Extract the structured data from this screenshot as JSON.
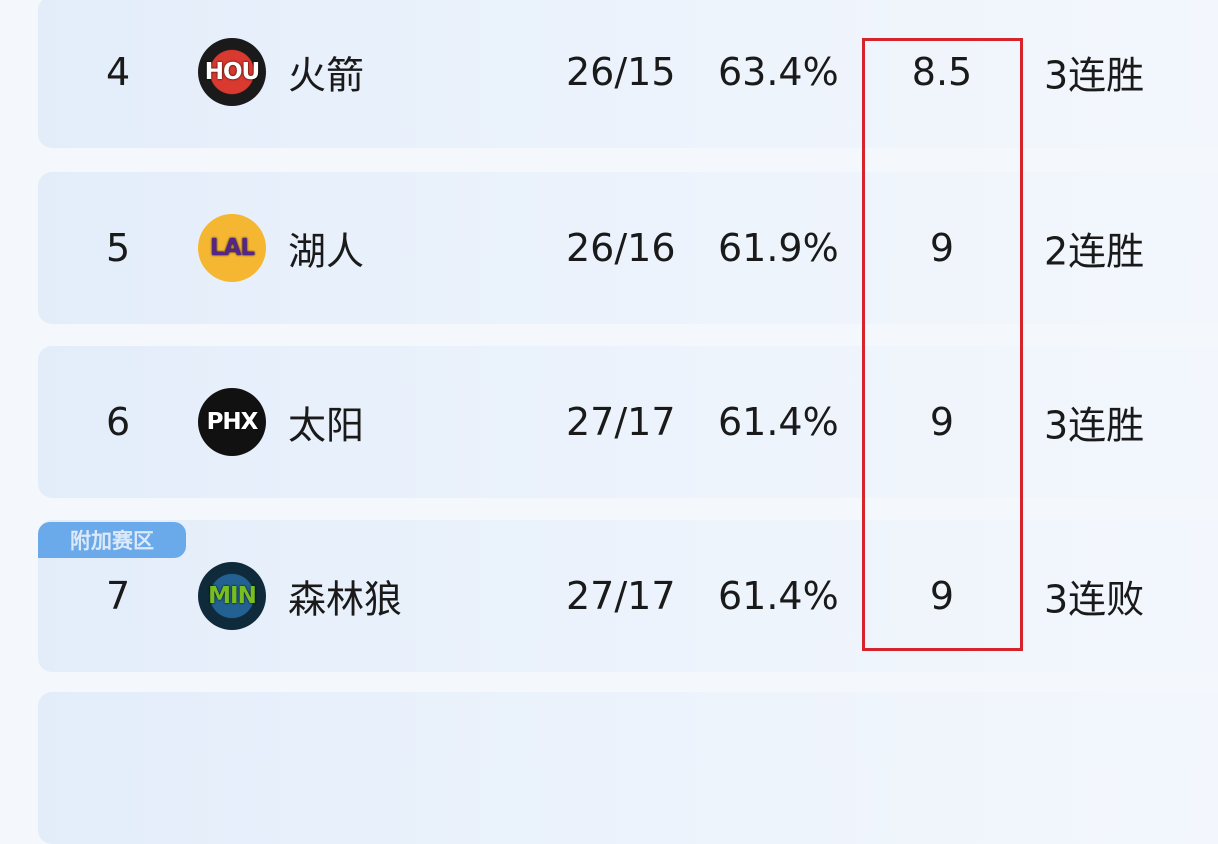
{
  "rows": [
    {
      "rank": "4",
      "abbr": "HOU",
      "name": "火箭",
      "record": "26/15",
      "pct": "63.4%",
      "gb": "8.5",
      "streak": "3连胜",
      "logo_bg": "#1a1a1a",
      "logo_ring": "#d9392f",
      "logo_fg": "#ffffff"
    },
    {
      "rank": "5",
      "abbr": "LAL",
      "name": "湖人",
      "record": "26/16",
      "pct": "61.9%",
      "gb": "9",
      "streak": "2连胜",
      "logo_bg": "#f5b731",
      "logo_ring": "#f5b731",
      "logo_fg": "#55258a"
    },
    {
      "rank": "6",
      "abbr": "PHX",
      "name": "太阳",
      "record": "27/17",
      "pct": "61.4%",
      "gb": "9",
      "streak": "3连胜",
      "logo_bg": "#111111",
      "logo_ring": "#111111",
      "logo_fg": "#ffffff"
    },
    {
      "rank": "7",
      "abbr": "MIN",
      "name": "森林狼",
      "record": "27/17",
      "pct": "61.4%",
      "gb": "9",
      "streak": "3连败",
      "logo_bg": "#0f2a3a",
      "logo_ring": "#236192",
      "logo_fg": "#78be20"
    }
  ],
  "playin_tag": "附加赛区",
  "highlight_color": "#d6242c"
}
